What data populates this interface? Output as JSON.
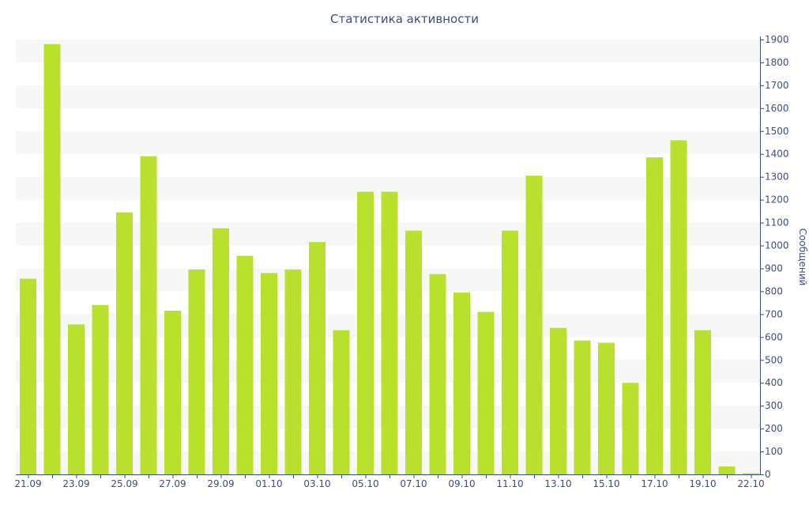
{
  "chart_data": {
    "type": "bar",
    "title": "Статистика активности",
    "ylabel": "Сообщений",
    "xlabel": "",
    "ylim": [
      0,
      1900
    ],
    "y_ticks": [
      0,
      100,
      200,
      300,
      400,
      500,
      600,
      700,
      800,
      900,
      1000,
      1100,
      1200,
      1300,
      1400,
      1500,
      1600,
      1700,
      1800,
      1900
    ],
    "y_axis_side": "right",
    "categories": [
      "21.09",
      "22.09",
      "23.09",
      "24.09",
      "25.09",
      "26.09",
      "27.09",
      "28.09",
      "29.09",
      "30.09",
      "01.10",
      "02.10",
      "03.10",
      "04.10",
      "05.10",
      "06.10",
      "07.10",
      "08.10",
      "09.10",
      "10.10",
      "11.10",
      "12.10",
      "13.10",
      "14.10",
      "15.10",
      "16.10",
      "17.10",
      "18.10",
      "19.10",
      "20.10",
      "22.10"
    ],
    "x_tick_labels": [
      "21.09",
      "23.09",
      "25.09",
      "27.09",
      "29.09",
      "01.10",
      "03.10",
      "05.10",
      "07.10",
      "09.10",
      "11.10",
      "13.10",
      "15.10",
      "17.10",
      "19.10",
      "22.10"
    ],
    "values": [
      855,
      1880,
      655,
      740,
      1145,
      1390,
      715,
      895,
      1075,
      955,
      880,
      895,
      1015,
      630,
      1235,
      1235,
      1065,
      875,
      795,
      710,
      1065,
      1305,
      640,
      585,
      575,
      400,
      1385,
      1460,
      630,
      35,
      5
    ],
    "grid": "horizontal alternating bands",
    "colors": {
      "bar": "#b8e02c",
      "band": "#f7f7f7",
      "axis": "#3f4d7d",
      "text": "#3f4d7d"
    }
  }
}
